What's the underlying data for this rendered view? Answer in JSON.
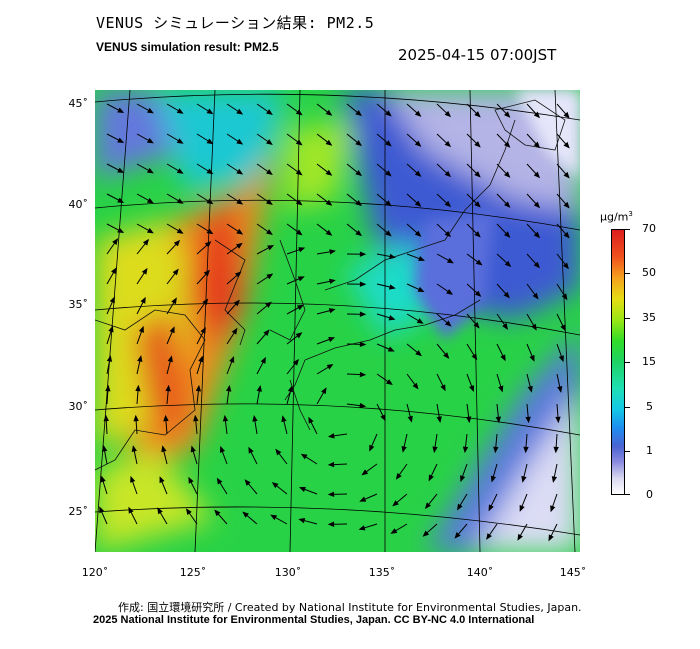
{
  "header": {
    "title_jp": "VENUS シミュレーション結果: PM2.5",
    "title_en": "VENUS simulation result: PM2.5",
    "timestamp": "2025-04-15 07:00JST"
  },
  "map": {
    "lat_labels": [
      "45˚",
      "40˚",
      "35˚",
      "30˚",
      "25˚"
    ],
    "lon_labels": [
      "120˚",
      "125˚",
      "130˚",
      "135˚",
      "140˚",
      "145˚"
    ]
  },
  "colorbar": {
    "unit_base": "μg/m",
    "unit_exp": "3",
    "labels": [
      "70",
      "50",
      "35",
      "15",
      "5",
      "1",
      "0"
    ],
    "colors": [
      "#ffffff",
      "#d8d8f0",
      "#8c8ce0",
      "#4b64d2",
      "#1e8cf0",
      "#14c8e6",
      "#1ee0b4",
      "#1ed264",
      "#32dc28",
      "#9be614",
      "#e6dc14",
      "#f5a01e",
      "#f0501e",
      "#dc1e1e"
    ]
  },
  "footer": {
    "credit_jp": "作成: 国立環境研究所 / Created by National Institute for Environmental Studies, Japan.",
    "copyright": "2025 National Institute for Environmental Studies, Japan. CC BY-NC 4.0 International"
  }
}
